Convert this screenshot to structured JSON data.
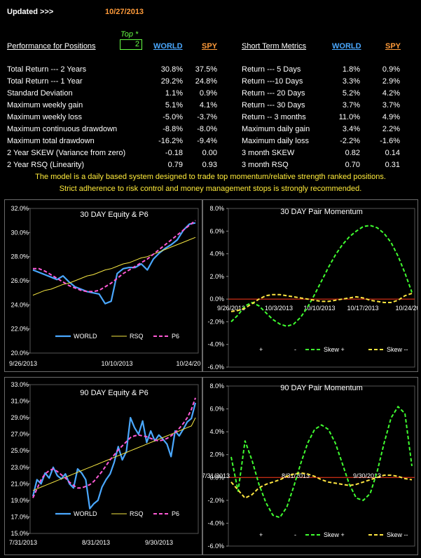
{
  "header": {
    "updated_label": "Updated >>>",
    "updated_date": "10/27/2013",
    "top_label": "Top *",
    "top_value": "2"
  },
  "colors": {
    "world": "#4aa8ff",
    "spy": "#ff9b3a",
    "rsq": "#f5e642",
    "p6": "#ff5ad6",
    "skew_pos": "#40ff30",
    "skew_neg": "#ffe640",
    "zero": "#ff3a1a"
  },
  "left_table": {
    "title": "Performance for Positions",
    "col_world": "WORLD",
    "col_spy": "SPY",
    "rows": [
      {
        "label": "Total Return --- 2 Years",
        "world": "30.8%",
        "spy": "37.5%"
      },
      {
        "label": "Total Return --- 1 Year",
        "world": "29.2%",
        "spy": "24.8%"
      },
      {
        "label": "Standard Deviation",
        "world": "1.1%",
        "spy": "0.9%"
      },
      {
        "label": "Maximum weekly gain",
        "world": "5.1%",
        "spy": "4.1%"
      },
      {
        "label": "Maximum weekly loss",
        "world": "-5.0%",
        "spy": "-3.7%"
      },
      {
        "label": "Maximum continuous drawdown",
        "world": "-8.8%",
        "spy": "-8.0%"
      },
      {
        "label": "Maximum total drawdown",
        "world": "-16.2%",
        "spy": "-9.4%"
      },
      {
        "label": "2 Year SKEW  (Variance from zero)",
        "world": "-0.18",
        "spy": "0.00"
      },
      {
        "label": "2 Year RSQ  (Linearity)",
        "world": "0.79",
        "spy": "0.93"
      }
    ]
  },
  "right_table": {
    "title": "Short Term Metrics",
    "col_world": "WORLD",
    "col_spy": "SPY",
    "rows": [
      {
        "label": "Return --- 5 Days",
        "world": "1.8%",
        "spy": "0.9%"
      },
      {
        "label": "Return ---10 Days",
        "world": "3.3%",
        "spy": "2.9%"
      },
      {
        "label": "Return --- 20 Days",
        "world": "5.2%",
        "spy": "4.2%"
      },
      {
        "label": "Return --- 30 Days",
        "world": "3.7%",
        "spy": "3.7%"
      },
      {
        "label": "Return -- 3 months",
        "world": "11.0%",
        "spy": "4.9%"
      },
      {
        "label": "Maximum daily gain",
        "world": "3.4%",
        "spy": "2.2%"
      },
      {
        "label": "Maximum daily loss",
        "world": "-2.2%",
        "spy": "-1.6%"
      },
      {
        "label": "3 month SKEW",
        "world": "0.82",
        "spy": "0.14"
      },
      {
        "label": "3 month RSQ",
        "world": "0.70",
        "spy": "0.31"
      }
    ]
  },
  "notes": {
    "line1": "The model is a daily based system designed to trade top momentum/relative strength ranked positions.",
    "line2": "Strict adherence to risk control and money management stops is strongly recommended."
  },
  "chart_data": [
    {
      "type": "line",
      "title": "30 DAY  Equity & P6",
      "ylim": [
        20,
        32
      ],
      "y_ticks": [
        "20.0%",
        "22.0%",
        "24.0%",
        "26.0%",
        "28.0%",
        "30.0%",
        "32.0%"
      ],
      "x_ticks": [
        "9/26/2013",
        "10/10/2013",
        "10/24/20"
      ],
      "legend": [
        "WORLD",
        "RSQ",
        "P6"
      ],
      "series": [
        {
          "name": "WORLD",
          "values": [
            26.9,
            26.7,
            26.5,
            26.3,
            26.1,
            26.4,
            25.9,
            25.5,
            25.3,
            25.1,
            25.0,
            24.9,
            24.1,
            24.3,
            26.6,
            27.0,
            27.1,
            27.1,
            27.4,
            26.9,
            27.8,
            28.3,
            28.7,
            29.0,
            29.4,
            30.2,
            30.7,
            30.8
          ]
        },
        {
          "name": "RSQ",
          "values": [
            24.8,
            25.0,
            25.2,
            25.3,
            25.5,
            25.7,
            25.8,
            26.0,
            26.2,
            26.4,
            26.5,
            26.7,
            26.9,
            27.0,
            27.2,
            27.4,
            27.5,
            27.7,
            27.9,
            28.0,
            28.2,
            28.4,
            28.6,
            28.8,
            29.0,
            29.2,
            29.4,
            29.6
          ]
        },
        {
          "name": "P6",
          "values": [
            27.0,
            27.0,
            26.8,
            26.5,
            26.2,
            25.9,
            25.6,
            25.4,
            25.2,
            25.1,
            25.1,
            25.2,
            25.5,
            25.8,
            26.2,
            26.6,
            26.9,
            27.2,
            27.5,
            27.8,
            28.2,
            28.6,
            29.0,
            29.4,
            29.8,
            30.2,
            30.6,
            31.0
          ]
        }
      ]
    },
    {
      "type": "line",
      "title": "30 DAY Pair Momentum",
      "ylim": [
        -6,
        8
      ],
      "y_ticks": [
        "-6.0%",
        "-4.0%",
        "-2.0%",
        "0.0%",
        "2.0%",
        "4.0%",
        "6.0%",
        "8.0%"
      ],
      "x_ticks": [
        "9/26/2013",
        "10/3/2013",
        "10/10/2013",
        "10/17/2013",
        "10/24/20"
      ],
      "legend": [
        "+",
        "-",
        "Skew +",
        "Skew --"
      ],
      "series": [
        {
          "name": "Skew +",
          "values": [
            -2.0,
            -1.4,
            -0.6,
            -0.3,
            -0.6,
            -1.2,
            -1.8,
            -2.2,
            -2.4,
            -2.2,
            -1.6,
            -0.7,
            0.4,
            1.6,
            2.8,
            3.9,
            4.8,
            5.5,
            6.0,
            6.4,
            6.5,
            6.3,
            5.8,
            5.0,
            3.8,
            2.3,
            0.6
          ]
        },
        {
          "name": "Skew --",
          "values": [
            -1.1,
            -1.0,
            -0.8,
            -0.4,
            0.0,
            0.3,
            0.4,
            0.4,
            0.3,
            0.2,
            0.1,
            0.0,
            -0.1,
            -0.2,
            -0.2,
            -0.1,
            0.0,
            0.1,
            0.2,
            0.1,
            -0.1,
            -0.2,
            -0.3,
            -0.3,
            -0.1,
            0.3,
            0.5
          ]
        }
      ]
    },
    {
      "type": "line",
      "title": "90 DAY  Equity & P6",
      "ylim": [
        15,
        33
      ],
      "y_ticks": [
        "15.0%",
        "17.0%",
        "19.0%",
        "21.0%",
        "23.0%",
        "25.0%",
        "27.0%",
        "29.0%",
        "31.0%",
        "33.0%"
      ],
      "x_ticks": [
        "7/31/2013",
        "8/31/2013",
        "9/30/2013"
      ],
      "legend": [
        "WORLD",
        "RSQ",
        "P6"
      ],
      "series": [
        {
          "name": "WORLD",
          "values": [
            19.5,
            21.5,
            21.0,
            22.3,
            21.7,
            23.0,
            22.0,
            21.6,
            22.2,
            21.0,
            20.5,
            22.8,
            22.3,
            21.5,
            18.0,
            18.6,
            19.0,
            20.6,
            21.5,
            22.2,
            23.6,
            25.5,
            23.9,
            24.9,
            29.0,
            27.8,
            27.0,
            28.6,
            26.0,
            27.4,
            26.2,
            26.9,
            26.4,
            25.8,
            24.3,
            27.4,
            26.8,
            27.6,
            28.5,
            28.9,
            30.8
          ]
        },
        {
          "name": "RSQ",
          "values": [
            20.2,
            20.4,
            20.6,
            20.8,
            21.0,
            21.2,
            21.4,
            21.6,
            21.8,
            22.0,
            22.2,
            22.4,
            22.6,
            22.8,
            23.0,
            23.2,
            23.4,
            23.6,
            23.8,
            24.0,
            24.2,
            24.4,
            24.6,
            24.8,
            25.0,
            25.2,
            25.4,
            25.6,
            25.8,
            26.0,
            26.2,
            26.4,
            26.6,
            26.8,
            27.0,
            27.2,
            27.4,
            27.6,
            27.8,
            28.0,
            29.0
          ]
        },
        {
          "name": "P6",
          "values": [
            19.3,
            20.4,
            21.5,
            22.2,
            22.6,
            22.8,
            22.5,
            22.1,
            21.7,
            21.2,
            20.8,
            20.5,
            20.5,
            20.7,
            20.9,
            21.3,
            21.9,
            22.5,
            23.2,
            23.9,
            24.5,
            25.1,
            25.6,
            26.1,
            26.6,
            26.8,
            26.9,
            26.8,
            26.7,
            26.5,
            26.3,
            26.2,
            26.3,
            26.5,
            26.8,
            27.2,
            27.7,
            28.3,
            29.0,
            30.0,
            31.4
          ]
        }
      ]
    },
    {
      "type": "line",
      "title": "90 DAY Pair Momentum",
      "ylim": [
        -6,
        8
      ],
      "y_ticks": [
        "-6.0%",
        "-4.0%",
        "-2.0%",
        "0.0%",
        "2.0%",
        "4.0%",
        "6.0%",
        "8.0%"
      ],
      "x_ticks": [
        "7/31/2013",
        "8/31/2013",
        "9/30/2013"
      ],
      "legend": [
        "+",
        "-",
        "Skew +",
        "Skew --"
      ],
      "series": [
        {
          "name": "Skew +",
          "values": [
            1.8,
            -1.2,
            3.2,
            1.5,
            -0.6,
            -2.2,
            -3.3,
            -3.5,
            -2.6,
            -0.8,
            1.2,
            3.0,
            4.2,
            4.6,
            4.2,
            3.0,
            1.2,
            -0.6,
            -1.8,
            -2.0,
            -1.4,
            0.5,
            3.0,
            5.2,
            6.2,
            5.6,
            1.0
          ]
        },
        {
          "name": "Skew --",
          "values": [
            -0.4,
            -1.1,
            -1.8,
            -1.5,
            -0.9,
            -0.6,
            -0.4,
            -0.2,
            0.1,
            0.3,
            0.4,
            0.3,
            0.1,
            -0.2,
            -0.4,
            -0.5,
            -0.6,
            -0.7,
            -0.6,
            -0.4,
            -0.2,
            0.0,
            0.2,
            0.2,
            0.1,
            -0.1,
            -0.2
          ]
        }
      ]
    }
  ]
}
